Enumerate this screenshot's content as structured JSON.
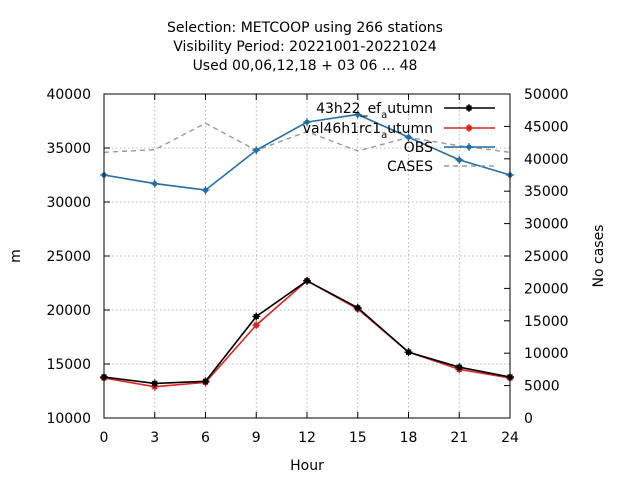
{
  "chart_data": {
    "type": "line",
    "title_lines": [
      "Selection: METCOOP using   266 stations",
      "Visibility   Period: 20221001-20221024",
      "Used  00,06,12,18  + 03 06 ... 48"
    ],
    "xlabel": "Hour",
    "ylabel": "m",
    "y2label": "No cases",
    "x": [
      0,
      3,
      6,
      9,
      12,
      15,
      18,
      21,
      24
    ],
    "xlim": [
      0,
      24
    ],
    "ylim": [
      10000,
      40000
    ],
    "y2lim": [
      0,
      50000
    ],
    "x_ticks": [
      "0",
      "3",
      "6",
      "9",
      "12",
      "15",
      "18",
      "21",
      "24"
    ],
    "y_ticks": [
      "10000",
      "15000",
      "20000",
      "25000",
      "30000",
      "35000",
      "40000"
    ],
    "y2_ticks": [
      "0",
      "5000",
      "10000",
      "15000",
      "20000",
      "25000",
      "30000",
      "35000",
      "40000",
      "45000",
      "50000"
    ],
    "grid": true,
    "legend_position": "top-right",
    "series": [
      {
        "name": "43h22_ef_autumn",
        "legend_main": "43h22_ef",
        "legend_sub": "a",
        "legend_tail": "utumn",
        "axis": "left",
        "color": "#000000",
        "values": [
          13800,
          13200,
          13400,
          19400,
          22700,
          20200,
          16100,
          14700,
          13800
        ]
      },
      {
        "name": "val46h1rc1_autumn",
        "legend_main": "val46h1rc1",
        "legend_sub": "a",
        "legend_tail": "utumn",
        "axis": "left",
        "color": "#dd2222",
        "values": [
          13700,
          12900,
          13300,
          18600,
          22700,
          20100,
          16100,
          14500,
          13700
        ]
      },
      {
        "name": "OBS",
        "axis": "left",
        "color": "#1f6fa8",
        "values": [
          32500,
          31700,
          31100,
          34800,
          37400,
          38100,
          36000,
          33900,
          32500
        ]
      },
      {
        "name": "CASES",
        "axis": "right",
        "color": "#9a9a9a",
        "dashed": true,
        "values": [
          41000,
          41400,
          45500,
          41300,
          44200,
          41200,
          43300,
          42000,
          41000
        ]
      }
    ]
  }
}
